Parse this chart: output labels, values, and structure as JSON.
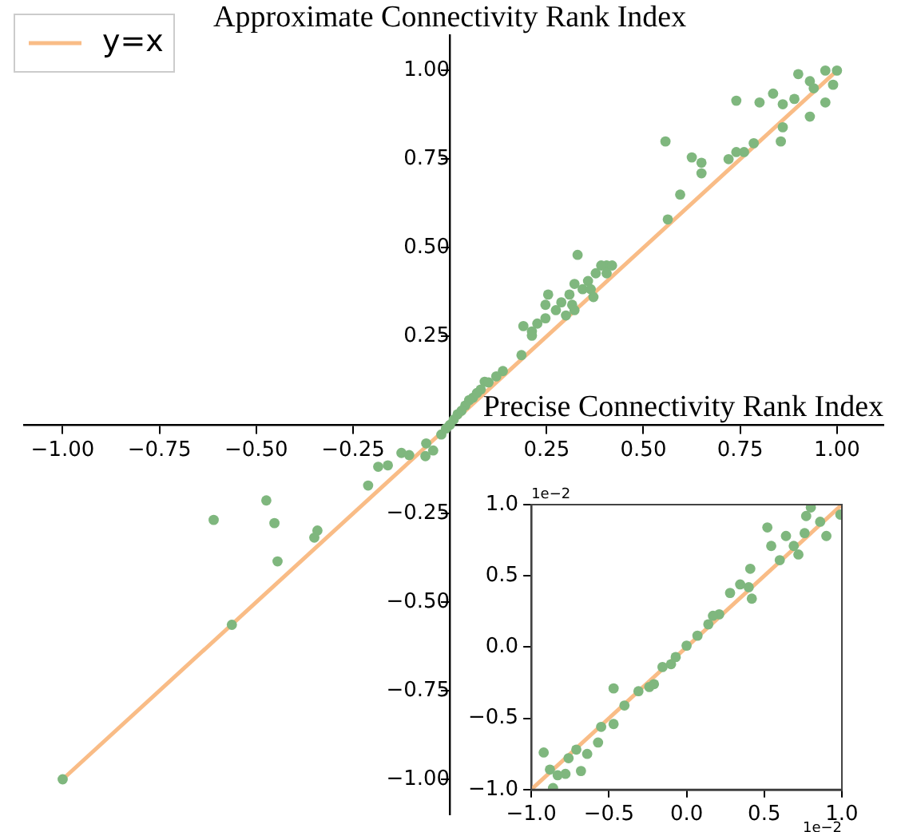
{
  "chart_data": [
    {
      "type": "scatter",
      "xlabel": "Precise Connectivity Rank Index",
      "ylabel": "Approximate Connectivity Rank Index",
      "legend": "top left",
      "grid": false,
      "xlim": [
        -1.1,
        1.12
      ],
      "ylim": [
        -1.1,
        1.1
      ],
      "xticks": [
        {
          "value": -1,
          "label": "−1.00"
        },
        {
          "value": -0.75,
          "label": "−0.75"
        },
        {
          "value": -0.5,
          "label": "−0.50"
        },
        {
          "value": -0.25,
          "label": "−0.25"
        },
        {
          "value": 0.25,
          "label": "0.25"
        },
        {
          "value": 0.5,
          "label": "0.50"
        },
        {
          "value": 0.75,
          "label": "0.75"
        },
        {
          "value": 1,
          "label": "1.00"
        }
      ],
      "yticks": [
        {
          "value": -1,
          "label": "−1.00"
        },
        {
          "value": -0.75,
          "label": "−0.75"
        },
        {
          "value": -0.5,
          "label": "−0.50"
        },
        {
          "value": -0.25,
          "label": "−0.25"
        },
        {
          "value": 0.25,
          "label": "0.25"
        },
        {
          "value": 0.5,
          "label": "0.50"
        },
        {
          "value": 0.75,
          "label": "0.75"
        },
        {
          "value": 1,
          "label": "1.00"
        }
      ],
      "series": [
        {
          "marker": "circle",
          "color": "#7fb77e",
          "x": [
            1.0,
            0.97,
            0.9,
            0.93,
            0.94,
            0.99,
            0.97,
            0.93,
            0.89,
            0.86,
            0.835,
            0.8,
            0.74,
            0.86,
            0.855,
            0.785,
            0.76,
            0.74,
            0.72,
            0.65,
            0.65,
            0.625,
            0.557,
            0.595,
            0.563,
            0.33,
            0.405,
            0.391,
            0.419,
            0.377,
            0.405,
            0.357,
            0.343,
            0.364,
            0.322,
            0.309,
            0.371,
            0.288,
            0.316,
            0.322,
            0.274,
            0.254,
            0.3,
            0.247,
            0.226,
            0.247,
            0.212,
            0.19,
            0.212,
            0.185,
            0.137,
            0.12,
            0.09,
            0.08,
            0.06,
            0.04,
            0.03,
            0.1,
            0.07,
            0.05,
            0.02,
            0.01,
            0.0,
            -1.0,
            -0.563,
            -0.61,
            -0.474,
            -0.453,
            -0.445,
            -0.342,
            -0.35,
            -0.211,
            -0.185,
            -0.16,
            -0.125,
            -0.105,
            -0.063,
            -0.061,
            -0.043,
            -0.022,
            -0.01
          ],
          "values": [
            1.0,
            1.0,
            0.99,
            0.97,
            0.95,
            0.96,
            0.91,
            0.87,
            0.92,
            0.905,
            0.935,
            0.91,
            0.915,
            0.84,
            0.8,
            0.795,
            0.77,
            0.77,
            0.75,
            0.74,
            0.71,
            0.755,
            0.8,
            0.65,
            0.58,
            0.48,
            0.45,
            0.45,
            0.45,
            0.428,
            0.428,
            0.406,
            0.383,
            0.383,
            0.398,
            0.368,
            0.361,
            0.346,
            0.339,
            0.324,
            0.324,
            0.368,
            0.309,
            0.301,
            0.286,
            0.339,
            0.264,
            0.279,
            0.252,
            0.197,
            0.152,
            0.137,
            0.122,
            0.1,
            0.077,
            0.055,
            0.04,
            0.12,
            0.09,
            0.07,
            0.03,
            0.015,
            0.0,
            -1.0,
            -0.564,
            -0.268,
            -0.213,
            -0.277,
            -0.385,
            -0.298,
            -0.318,
            -0.171,
            -0.118,
            -0.114,
            -0.079,
            -0.085,
            -0.088,
            -0.052,
            -0.072,
            -0.027,
            -0.01
          ]
        },
        {
          "type": "line",
          "marker": "none",
          "name": "y=x",
          "color": "#f9bc86",
          "x": [
            -1,
            1
          ],
          "values": [
            -1,
            1
          ]
        }
      ]
    },
    {
      "type": "scatter",
      "grid": false,
      "annotations": [
        "1e−2",
        "1e−2"
      ],
      "xlim": [
        -1,
        1
      ],
      "ylim": [
        -1,
        1
      ],
      "xticks": [
        {
          "value": -1,
          "label": "−1.0"
        },
        {
          "value": -0.5,
          "label": "−0.5"
        },
        {
          "value": 0,
          "label": "0.0"
        },
        {
          "value": 0.5,
          "label": "0.5"
        },
        {
          "value": 1,
          "label": "1.0"
        }
      ],
      "yticks": [
        {
          "value": -1,
          "label": "−1.0"
        },
        {
          "value": -0.5,
          "label": "−0.5"
        },
        {
          "value": 0,
          "label": "0.0"
        },
        {
          "value": 0.5,
          "label": "0.5"
        },
        {
          "value": 1,
          "label": "1.0"
        }
      ],
      "series": [
        {
          "marker": "circle",
          "color": "#7fb77e",
          "x": [
            -0.92,
            -0.88,
            -0.86,
            -0.83,
            -0.78,
            -0.76,
            -0.71,
            -0.68,
            -0.64,
            -0.57,
            -0.55,
            -0.47,
            -0.47,
            -0.4,
            -0.31,
            -0.24,
            -0.155,
            -0.07,
            0,
            0.07,
            0.14,
            0.21,
            0.28,
            0.345,
            0.41,
            0.42,
            0.52,
            0.545,
            0.6,
            0.64,
            0.69,
            0.77,
            0.8,
            0.86,
            0.9,
            0.99,
            0.76,
            0.72,
            0.17,
            -0.1,
            -0.21,
            0.4
          ],
          "values": [
            -0.74,
            -0.86,
            -0.99,
            -0.9,
            -0.89,
            -0.78,
            -0.72,
            -0.87,
            -0.75,
            -0.67,
            -0.56,
            -0.29,
            -0.54,
            -0.41,
            -0.31,
            -0.28,
            -0.14,
            -0.07,
            0.01,
            0.08,
            0.16,
            0.23,
            0.38,
            0.44,
            0.55,
            0.34,
            0.84,
            0.71,
            0.61,
            0.78,
            0.71,
            0.92,
            0.98,
            0.88,
            0.78,
            0.93,
            0.8,
            0.65,
            0.22,
            -0.12,
            -0.26,
            0.42
          ]
        },
        {
          "type": "line",
          "marker": "none",
          "color": "#f9bc86",
          "x": [
            -1,
            1
          ],
          "values": [
            -1,
            1
          ]
        }
      ]
    }
  ]
}
